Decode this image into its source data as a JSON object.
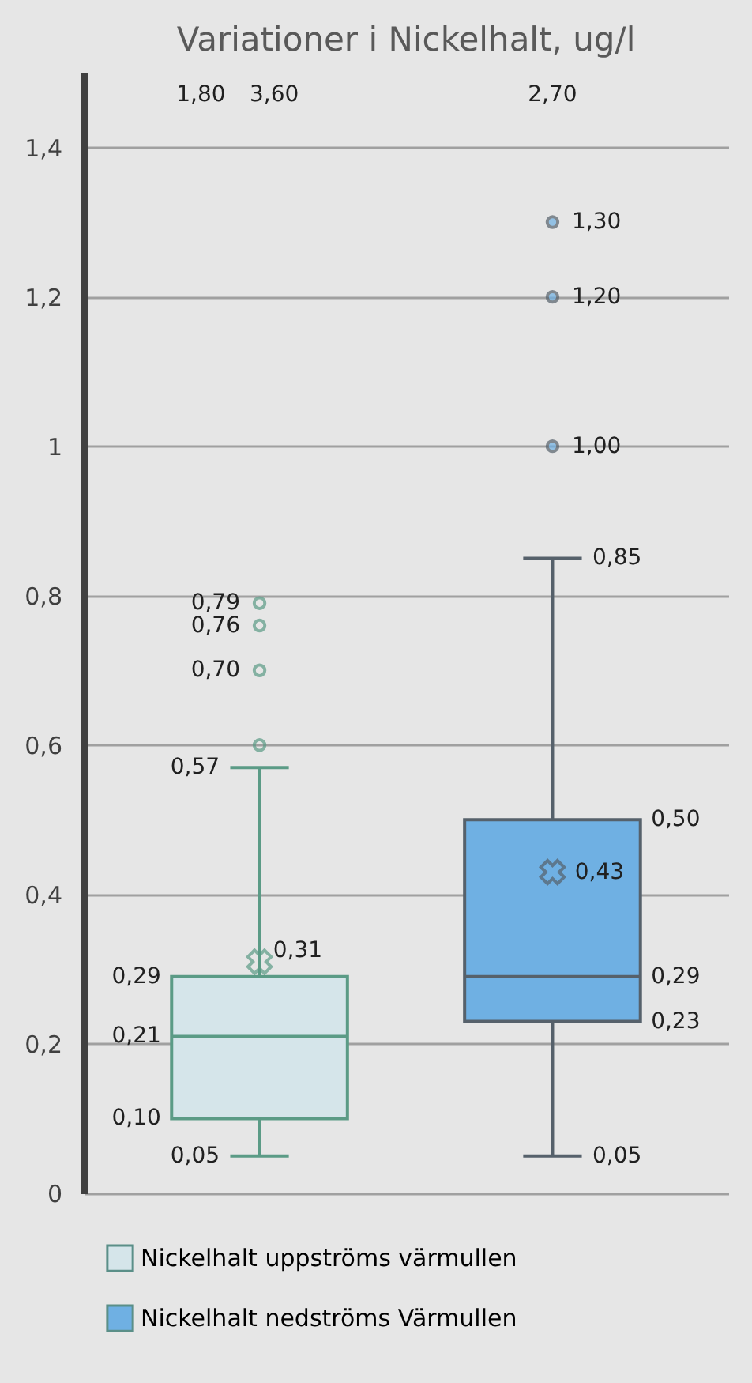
{
  "chart_data": {
    "type": "box",
    "title": "Variationer i Nickelhalt, ug/l",
    "categories": [
      null
    ],
    "series": [
      {
        "name": "Nickelhalt uppströms värmullen",
        "color": "#d5e5ea",
        "boxes": [
          {
            "low": 0.05,
            "q1": 0.1,
            "median": 0.21,
            "q3": 0.29,
            "high": 0.57,
            "mean": 0.31,
            "outliers": [
              0.6,
              0.7,
              0.76,
              0.79
            ]
          }
        ]
      },
      {
        "name": "Nickelhalt nedströms Värmullen",
        "color": "#6fb0e3",
        "boxes": [
          {
            "low": 0.05,
            "q1": 0.23,
            "median": 0.29,
            "q3": 0.5,
            "high": 0.85,
            "mean": 0.43,
            "outliers": [
              1.0,
              1.2,
              1.3
            ]
          }
        ]
      }
    ],
    "ylim": [
      0,
      1.5
    ],
    "yticks": [
      {
        "value": 0,
        "label": "0"
      },
      {
        "value": 0.2,
        "label": "0,2"
      },
      {
        "value": 0.4,
        "label": "0,4"
      },
      {
        "value": 0.6,
        "label": "0,6"
      },
      {
        "value": 0.8,
        "label": "0,8"
      },
      {
        "value": 1,
        "label": "1"
      },
      {
        "value": 1.2,
        "label": "1,2"
      },
      {
        "value": 1.4,
        "label": "1,4"
      }
    ],
    "grid": "y",
    "legend": "bottom",
    "annotations": [
      "1,80",
      "3,60",
      "2,70",
      "0,05",
      "0,10",
      "0,21",
      "0,29",
      "0,57",
      "0,31",
      "0,79",
      "0,76",
      "0,70",
      "0,05",
      "0,23",
      "0,29",
      "0,50",
      "0,85",
      "0,43",
      "1,30",
      "1,20",
      "1,00"
    ]
  }
}
